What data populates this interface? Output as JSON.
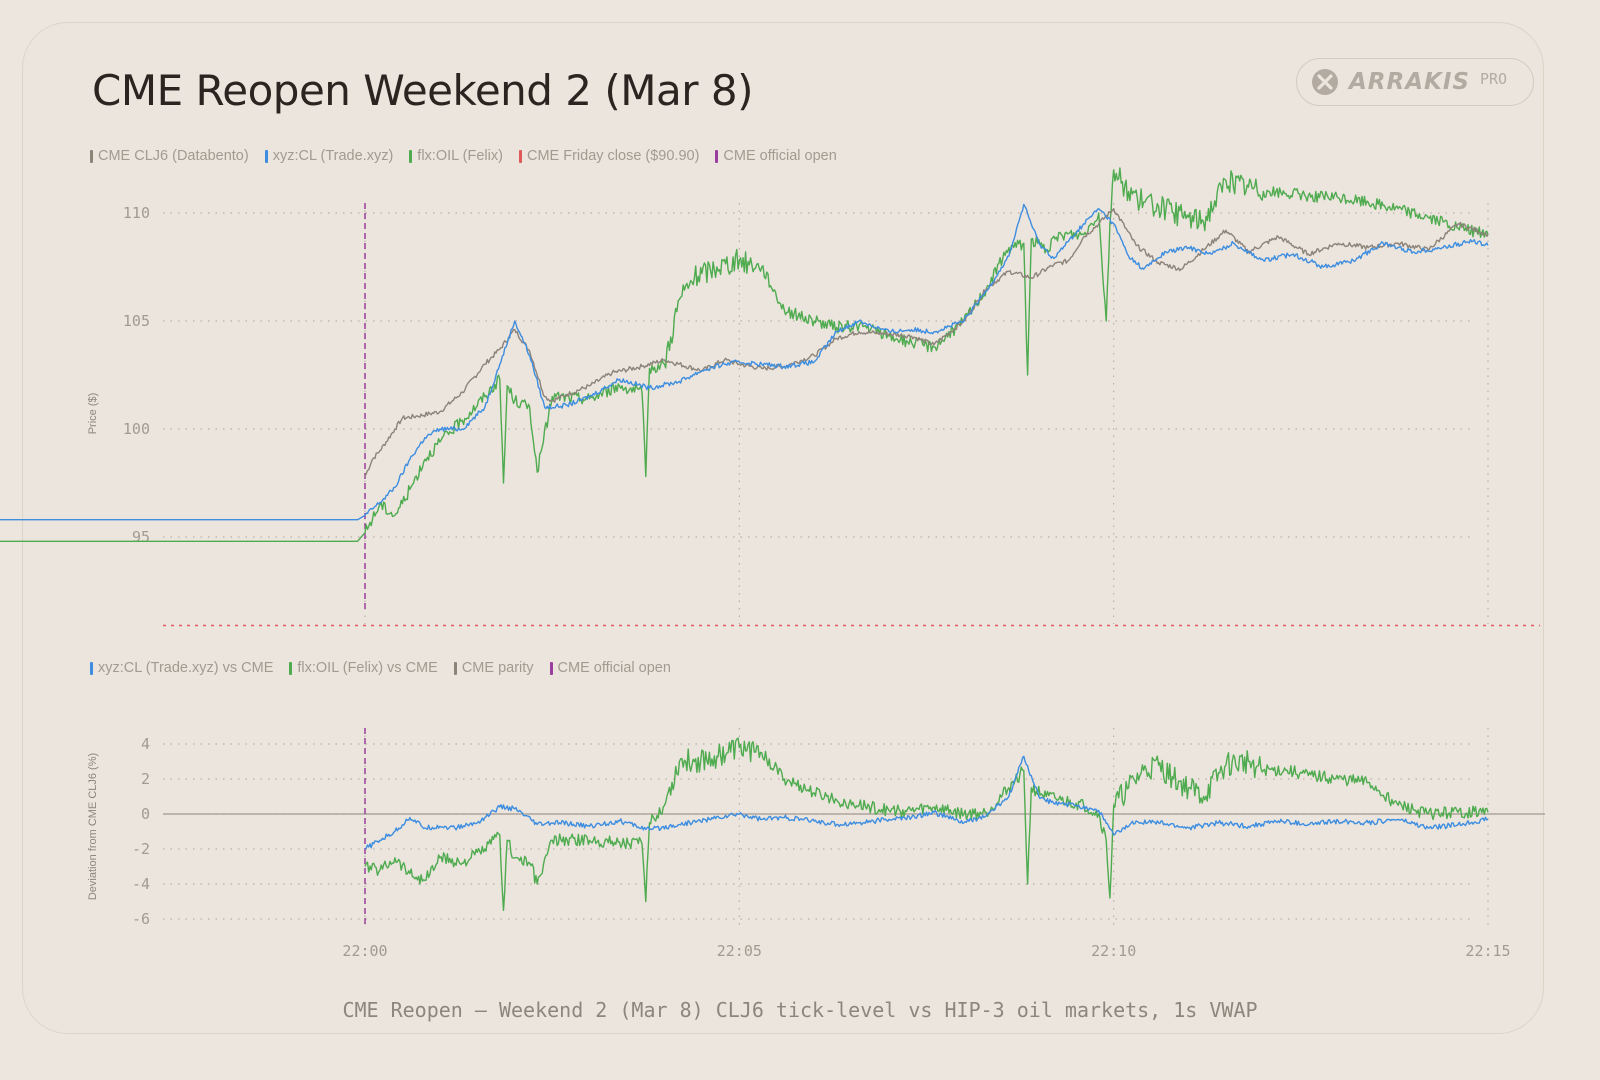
{
  "title": "CME Reopen Weekend 2 (Mar 8)",
  "logo": {
    "name": "arrakis-logo",
    "word": "ARRAKIS",
    "badge": "PRO"
  },
  "caption": "CME Reopen — Weekend 2 (Mar 8) CLJ6 tick-level vs HIP-3 oil markets, 1s VWAP",
  "colors": {
    "cme": "#8c8379",
    "xyz": "#3d8de0",
    "flx": "#4fab4f",
    "close": "#e05a5a",
    "open": "#9b3f9e",
    "parity": "#8c8379"
  },
  "chart_data": [
    {
      "type": "line",
      "name": "price",
      "ylabel": "Price ($)",
      "ylim": [
        90.9,
        111
      ],
      "yticks": [
        95,
        100,
        105,
        110
      ],
      "xlim": [
        -8,
        15.6
      ],
      "xticks": [
        "22:00",
        "22:05",
        "22:10",
        "22:15"
      ],
      "xtick_values": [
        0,
        5,
        10,
        15
      ],
      "x_unit": "minutes after 22:00",
      "legend": [
        {
          "label": "CME CLJ6 (Databento)",
          "color": "#8c8379"
        },
        {
          "label": "xyz:CL (Trade.xyz)",
          "color": "#3d8de0"
        },
        {
          "label": "flx:OIL (Felix)",
          "color": "#4fab4f"
        },
        {
          "label": "CME Friday close ($90.90)",
          "color": "#e05a5a"
        },
        {
          "label": "CME official open",
          "color": "#9b3f9e"
        }
      ],
      "hlines": [
        {
          "name": "CME Friday close ($90.90)",
          "y": 90.9
        }
      ],
      "vlines": [
        {
          "name": "CME official open",
          "x": 0
        }
      ],
      "series": [
        {
          "name": "CME CLJ6 (Databento)",
          "x": [
            0,
            0.1,
            0.2,
            0.4,
            0.5,
            0.7,
            1,
            1.3,
            1.6,
            1.8,
            2,
            2.2,
            2.4,
            2.5,
            2.7,
            3,
            3.3,
            3.7,
            4,
            4.5,
            4.8,
            5,
            5.3,
            5.6,
            6,
            6.3,
            6.6,
            7,
            7.3,
            7.6,
            8,
            8.3,
            8.6,
            8.9,
            9.2,
            9.4,
            9.6,
            9.8,
            10,
            10.3,
            10.6,
            10.9,
            11.2,
            11.5,
            11.8,
            12.2,
            12.6,
            13,
            13.4,
            13.8,
            14.2,
            14.6,
            15
          ],
          "y": [
            97.8,
            98.6,
            99,
            100,
            100.5,
            100.6,
            100.8,
            101.7,
            103,
            103.7,
            104.6,
            103.6,
            101.5,
            101.3,
            101.6,
            102,
            102.6,
            102.9,
            103.2,
            102.7,
            103.2,
            103,
            102.8,
            102.9,
            103.4,
            104.2,
            104.5,
            104.4,
            104.3,
            103.9,
            105,
            106.5,
            107.3,
            107,
            107.6,
            107.8,
            108.9,
            109.5,
            110.2,
            108.5,
            107.7,
            107.4,
            108.3,
            109.2,
            108.2,
            108.9,
            108.1,
            108.6,
            108.4,
            108.6,
            108.3,
            109.5,
            109
          ]
        },
        {
          "name": "xyz:CL (Trade.xyz)",
          "x": [
            -7.7,
            -5,
            -2,
            -0.1,
            0,
            0.2,
            0.4,
            0.6,
            0.8,
            1,
            1.3,
            1.6,
            1.8,
            2,
            2.2,
            2.4,
            2.7,
            3,
            3.4,
            3.8,
            4.2,
            4.5,
            4.8,
            5,
            5.3,
            5.6,
            6,
            6.3,
            6.6,
            7,
            7.3,
            7.6,
            8,
            8.3,
            8.6,
            8.8,
            9,
            9.2,
            9.4,
            9.6,
            9.8,
            10,
            10.2,
            10.4,
            10.7,
            11,
            11.3,
            11.6,
            12,
            12.4,
            12.8,
            13.2,
            13.6,
            14,
            14.4,
            14.8,
            15
          ],
          "y": [
            95.8,
            95.8,
            95.8,
            95.8,
            96,
            96.6,
            97.3,
            98.6,
            99.6,
            100,
            100,
            101,
            103,
            105,
            103.4,
            101,
            101.1,
            101.5,
            102.3,
            101.9,
            102.2,
            102.7,
            103,
            103.1,
            103,
            102.9,
            103.1,
            104.5,
            105,
            104.5,
            104.6,
            104.5,
            105,
            106.4,
            108,
            110.4,
            108.6,
            107.9,
            108.7,
            109.5,
            110.2,
            109.5,
            108,
            107.4,
            108.2,
            108.4,
            108.1,
            108.6,
            107.8,
            108.1,
            107.5,
            107.8,
            108.6,
            108.2,
            108.4,
            108.7,
            108.5
          ]
        },
        {
          "name": "flx:OIL (Felix)",
          "x": [
            -7.5,
            -5,
            -2,
            -0.1,
            0,
            0.2,
            0.4,
            0.6,
            0.8,
            1,
            1.3,
            1.6,
            1.8,
            1.85,
            1.9,
            2,
            2.2,
            2.3,
            2.5,
            3,
            3.4,
            3.7,
            3.75,
            3.8,
            4,
            4.2,
            4.4,
            4.7,
            5,
            5.3,
            5.6,
            6,
            6.3,
            6.6,
            7,
            7.3,
            7.6,
            8,
            8.3,
            8.6,
            8.8,
            8.85,
            8.9,
            9.1,
            9.3,
            9.6,
            9.8,
            9.9,
            9.95,
            10,
            10.2,
            10.4,
            10.6,
            10.8,
            11,
            11.2,
            11.5,
            11.8,
            12,
            12.3,
            12.6,
            13,
            13.4,
            13.8,
            14.2,
            14.6,
            15
          ],
          "y": [
            94.8,
            94.8,
            94.8,
            94.8,
            95.2,
            96.5,
            96,
            97.2,
            98.6,
            99.4,
            100.4,
            101.5,
            102.3,
            97.5,
            102,
            101.3,
            101,
            98,
            101.5,
            101.4,
            102,
            101.7,
            97.8,
            102.8,
            103,
            106,
            107,
            107.5,
            107.8,
            107.5,
            105.5,
            105,
            104.7,
            104.8,
            104.3,
            104,
            103.8,
            105,
            106.5,
            108.4,
            108.6,
            102.5,
            108.8,
            108.3,
            109,
            109,
            110,
            105,
            109.5,
            112,
            111,
            110.5,
            110.3,
            110,
            109.8,
            109.6,
            111.5,
            111.2,
            111,
            110.9,
            110.8,
            110.7,
            110.5,
            110.2,
            109.8,
            109.3,
            109
          ]
        }
      ]
    },
    {
      "type": "line",
      "name": "deviation",
      "ylabel": "Deviation from CME CLJ6 (%)",
      "ylim": [
        -6.2,
        4.8
      ],
      "yticks": [
        4,
        2,
        0,
        -2,
        -4,
        -6
      ],
      "xlim": [
        -8,
        15.6
      ],
      "xticks": [
        "22:00",
        "22:05",
        "22:10",
        "22:15"
      ],
      "xtick_values": [
        0,
        5,
        10,
        15
      ],
      "x_unit": "minutes after 22:00",
      "legend": [
        {
          "label": "xyz:CL (Trade.xyz) vs CME",
          "color": "#3d8de0"
        },
        {
          "label": "flx:OIL (Felix) vs CME",
          "color": "#4fab4f"
        },
        {
          "label": "CME parity",
          "color": "#8c8379"
        },
        {
          "label": "CME official open",
          "color": "#9b3f9e"
        }
      ],
      "hlines": [
        {
          "name": "CME parity",
          "y": 0
        }
      ],
      "vlines": [
        {
          "name": "CME official open",
          "x": 0
        }
      ],
      "series": [
        {
          "name": "xyz:CL (Trade.xyz) vs CME",
          "x": [
            0,
            0.2,
            0.4,
            0.6,
            0.8,
            1,
            1.2,
            1.5,
            1.8,
            2,
            2.3,
            2.6,
            3,
            3.4,
            3.8,
            4.2,
            4.6,
            5,
            5.3,
            5.6,
            6,
            6.3,
            6.6,
            7,
            7.3,
            7.6,
            8,
            8.3,
            8.6,
            8.8,
            9,
            9.2,
            9.5,
            9.8,
            10,
            10.3,
            10.6,
            11,
            11.4,
            11.8,
            12.2,
            12.6,
            13,
            13.4,
            13.8,
            14.2,
            14.6,
            15
          ],
          "y": [
            -2,
            -1.5,
            -1,
            -0.2,
            -0.8,
            -0.7,
            -0.8,
            -0.5,
            0.4,
            0.3,
            -0.6,
            -0.5,
            -0.7,
            -0.4,
            -0.9,
            -0.6,
            -0.3,
            0,
            -0.3,
            -0.2,
            -0.4,
            -0.6,
            -0.5,
            -0.3,
            -0.2,
            0.1,
            -0.5,
            -0.1,
            1,
            3.3,
            1,
            0.6,
            0.5,
            0.2,
            -1.2,
            -0.4,
            -0.5,
            -0.8,
            -0.5,
            -0.7,
            -0.4,
            -0.6,
            -0.4,
            -0.5,
            -0.3,
            -0.8,
            -0.6,
            -0.3
          ]
        },
        {
          "name": "flx:OIL (Felix) vs CME",
          "x": [
            0,
            0.2,
            0.4,
            0.6,
            0.8,
            1,
            1.3,
            1.6,
            1.8,
            1.85,
            1.9,
            2,
            2.2,
            2.3,
            2.5,
            3,
            3.4,
            3.7,
            3.75,
            3.8,
            4,
            4.2,
            4.4,
            4.7,
            5,
            5.3,
            5.6,
            6,
            6.3,
            6.6,
            7,
            7.3,
            7.6,
            8,
            8.3,
            8.6,
            8.8,
            8.85,
            8.9,
            9.1,
            9.3,
            9.6,
            9.8,
            9.9,
            9.95,
            10,
            10.2,
            10.4,
            10.6,
            10.8,
            11,
            11.2,
            11.5,
            11.8,
            12,
            12.3,
            12.6,
            13,
            13.4,
            13.8,
            14.2,
            14.6,
            15
          ],
          "y": [
            -3,
            -3.2,
            -2.5,
            -3.4,
            -3.8,
            -2.5,
            -2.8,
            -2,
            -1.2,
            -5.5,
            -1.5,
            -2.5,
            -2.8,
            -4,
            -1.5,
            -1.5,
            -1.6,
            -1.7,
            -5,
            -0.5,
            0.5,
            3,
            3,
            3.3,
            3.8,
            3.5,
            2,
            1.2,
            0.8,
            0.5,
            0.2,
            0.2,
            0.4,
            0,
            0.1,
            1.5,
            2.5,
            -4,
            1.5,
            1,
            0.8,
            0.5,
            0,
            -1.5,
            -4.8,
            0.5,
            1.5,
            2.5,
            2.8,
            2,
            1.5,
            1,
            2.8,
            3,
            2.5,
            2.5,
            2.2,
            2,
            1.8,
            0.5,
            0,
            0.1,
            0.1
          ]
        }
      ]
    }
  ]
}
